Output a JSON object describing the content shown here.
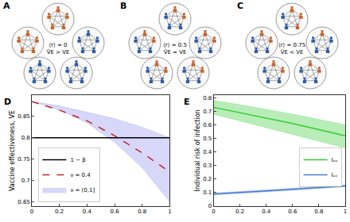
{
  "diagrams": {
    "panels": [
      {
        "label": "A",
        "r_text": "⟨r⟩ = 0",
        "ve_text": "V̂E > VE",
        "orange_counts": [
          5,
          5,
          0,
          0,
          0
        ]
      },
      {
        "label": "B",
        "r_text": "⟨r⟩ = 0.5",
        "ve_text": "V̂E ≈ VE",
        "orange_counts": [
          2,
          2,
          2,
          2,
          2
        ]
      },
      {
        "label": "C",
        "r_text": "⟨r⟩ = 0.75",
        "ve_text": "V̂E < VE",
        "orange_counts": [
          3,
          2,
          1,
          2,
          2
        ]
      }
    ],
    "colors": {
      "orange": "#c8642a",
      "blue": "#2f5da8"
    }
  },
  "chart_data": [
    {
      "type": "line",
      "title": "D",
      "y_label": "Vaccine effectiveness, VE",
      "x": [
        0,
        0.2,
        0.4,
        0.6,
        0.8,
        1
      ],
      "series": [
        {
          "name": "ν = (0,1]",
          "color": "#8c8cf0",
          "lower": [
            0.885,
            0.865,
            0.835,
            0.79,
            0.73,
            0.65
          ],
          "upper": [
            0.885,
            0.875,
            0.86,
            0.845,
            0.825,
            0.8
          ]
        },
        {
          "name": "ν = 0.4",
          "color": "#c0282d",
          "line_style": "dash",
          "values": [
            0.885,
            0.865,
            0.84,
            0.805,
            0.765,
            0.72
          ]
        },
        {
          "name": "1 − β",
          "color": "#000000",
          "line_style": "solid",
          "values": [
            0.8,
            0.8,
            0.8,
            0.8,
            0.8,
            0.8
          ]
        }
      ],
      "xlim": [
        0,
        1
      ],
      "xticks": [
        0,
        0.2,
        0.4,
        0.6,
        0.8,
        1
      ],
      "ylim": [
        0.64,
        0.9
      ],
      "yticks": [
        0.65,
        0.7,
        0.75,
        0.8,
        0.85
      ],
      "grid": false,
      "legend": "bottom left"
    },
    {
      "type": "line",
      "title": "E",
      "y_label": "Individual risk of infection",
      "x": [
        0,
        0.2,
        0.4,
        0.6,
        0.8,
        1
      ],
      "series": [
        {
          "name": "Iᵤᵥ",
          "color": "#4a7fd4",
          "line_style": "solid",
          "values": [
            0.09,
            0.1,
            0.113,
            0.125,
            0.138,
            0.15
          ],
          "lower": [
            0.083,
            0.093,
            0.106,
            0.118,
            0.131,
            0.143
          ],
          "upper": [
            0.097,
            0.107,
            0.12,
            0.132,
            0.145,
            0.157
          ]
        },
        {
          "name": "Iᵤᵤ",
          "color": "#33cc33",
          "line_style": "solid",
          "values": [
            0.73,
            0.69,
            0.65,
            0.61,
            0.565,
            0.52
          ],
          "lower": [
            0.68,
            0.63,
            0.58,
            0.53,
            0.48,
            0.43
          ],
          "upper": [
            0.78,
            0.75,
            0.715,
            0.68,
            0.64,
            0.6
          ]
        }
      ],
      "xlim": [
        0,
        1
      ],
      "xticks": [
        0,
        0.2,
        0.4,
        0.6,
        0.8,
        1
      ],
      "ylim": [
        0,
        0.82
      ],
      "yticks": [
        0,
        0.1,
        0.2,
        0.3,
        0.4,
        0.5,
        0.6,
        0.7,
        0.8
      ],
      "grid": false,
      "legend": "center right"
    }
  ]
}
